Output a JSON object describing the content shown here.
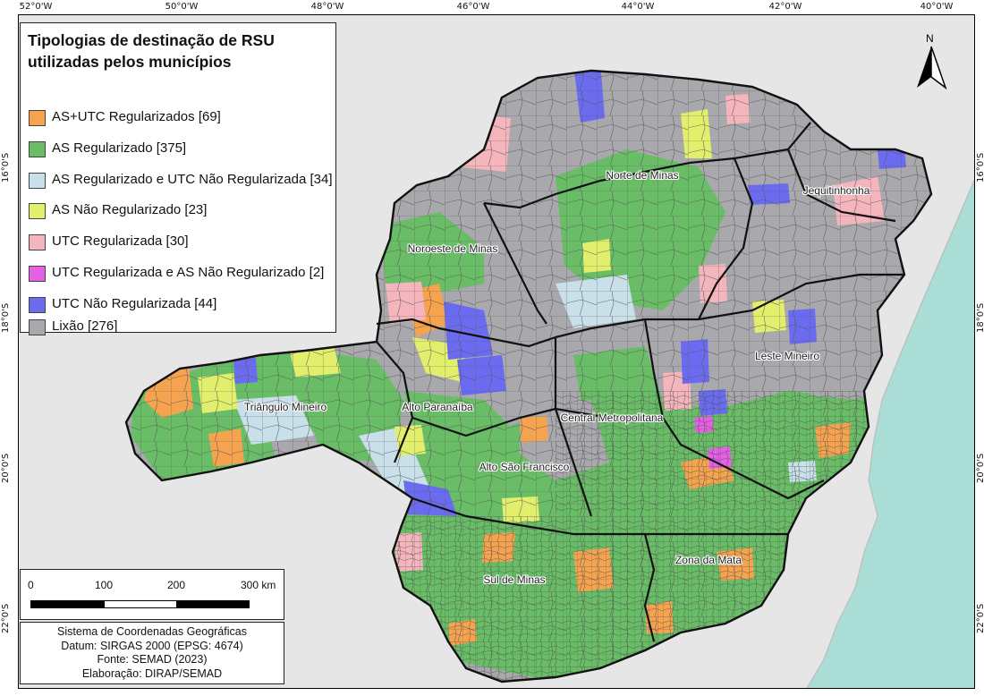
{
  "legend": {
    "title": "Tipologias de destinação de RSU utilizadas pelos municípios",
    "items": [
      {
        "label": "AS+UTC Regularizados [69]",
        "color": "#f5a34f"
      },
      {
        "label": "AS Regularizado [375]",
        "color": "#6abd67"
      },
      {
        "label": "AS Regularizado e UTC Não Regularizada [34]",
        "color": "#c9dfe9"
      },
      {
        "label": "AS Não Regularizado [23]",
        "color": "#e2ef6c"
      },
      {
        "label": "UTC Regularizada [30]",
        "color": "#f5b5bd"
      },
      {
        "label": "UTC Regularizada e AS Não Regularizado [2]",
        "color": "#e660e6"
      },
      {
        "label": "UTC Não Regularizada [44]",
        "color": "#6b6bf0"
      },
      {
        "label": "Lixão [276]",
        "color": "#a8a8ad"
      }
    ]
  },
  "graticule": {
    "longitudes": [
      "52°0'W",
      "50°0'W",
      "48°0'W",
      "46°0'W",
      "44°0'W",
      "42°0'W",
      "40°0'W"
    ],
    "latitudes": [
      "16°0'S",
      "18°0'S",
      "20°0'S",
      "22°0'S"
    ]
  },
  "regions": [
    {
      "name": "Norte de Minas"
    },
    {
      "name": "Jequitinhonha"
    },
    {
      "name": "Noroeste de Minas"
    },
    {
      "name": "Leste Mineiro"
    },
    {
      "name": "Triângulo Mineiro"
    },
    {
      "name": "Alto Paranaíba"
    },
    {
      "name": "Central Metropolitana"
    },
    {
      "name": "Alto São Francisco"
    },
    {
      "name": "Zona da Mata"
    },
    {
      "name": "Sul de Minas"
    }
  ],
  "scale_bar": {
    "ticks": [
      "0",
      "100",
      "200",
      "300 km"
    ]
  },
  "credits": {
    "lines": [
      "Sistema de Coordenadas Geográficas",
      "Datum: SIRGAS 2000 (EPSG: 4674)",
      "Fonte: SEMAD (2023)",
      "Elaboração: DIRAP/SEMAD"
    ]
  },
  "north_arrow": {
    "label": "N"
  },
  "colors": {
    "ocean": "#a9ddd6",
    "terrain": "#e6e6e6",
    "border": "#111111"
  }
}
